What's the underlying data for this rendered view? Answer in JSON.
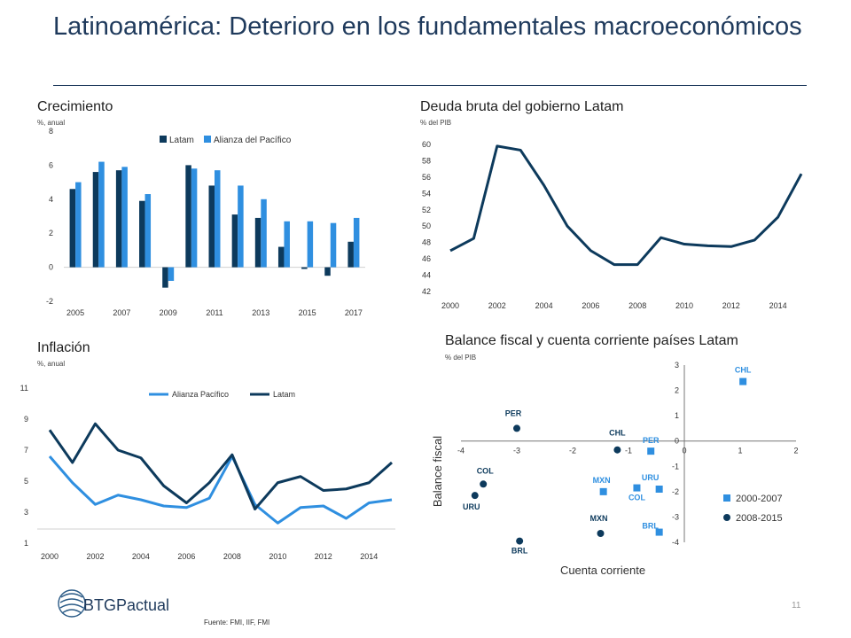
{
  "slide": {
    "title": "Latinoamérica: Deterioro en los fundamentales macroeconómicos",
    "source": "Fuente: FMI, IIF, FMI",
    "page_number": "11",
    "logo_text": "BTGPactual"
  },
  "colors": {
    "dark": "#0d3a5c",
    "light": "#2f8fe0",
    "title": "#1f3a5c"
  },
  "chart_data": [
    {
      "id": "crecimiento",
      "type": "bar",
      "title": "Crecimiento",
      "subtitle": "%, anual",
      "x": [
        2005,
        2006,
        2007,
        2008,
        2009,
        2010,
        2011,
        2012,
        2013,
        2014,
        2015,
        2016,
        2017
      ],
      "x_tick_labels": [
        "2005",
        "2007",
        "2009",
        "2011",
        "2013",
        "2015",
        "2017"
      ],
      "ylim": [
        -2,
        8
      ],
      "y_ticks": [
        "-2",
        "0",
        "2",
        "4",
        "6",
        "8"
      ],
      "legend_position": "top",
      "series": [
        {
          "name": "Latam",
          "values": [
            4.6,
            5.6,
            5.7,
            3.9,
            -1.2,
            6.0,
            4.8,
            3.1,
            2.9,
            1.2,
            -0.1,
            -0.5,
            1.5
          ]
        },
        {
          "name": "Alianza del Pacífico",
          "values": [
            5.0,
            6.2,
            5.9,
            4.3,
            -0.8,
            5.8,
            5.7,
            4.8,
            4.0,
            2.7,
            2.7,
            2.6,
            2.9
          ]
        }
      ]
    },
    {
      "id": "deuda",
      "type": "line",
      "title": "Deuda bruta del gobierno Latam",
      "subtitle": "% del PIB",
      "x": [
        2000,
        2001,
        2002,
        2003,
        2004,
        2005,
        2006,
        2007,
        2008,
        2009,
        2010,
        2011,
        2012,
        2013,
        2014,
        2015
      ],
      "x_tick_labels": [
        "2000",
        "2002",
        "2004",
        "2006",
        "2008",
        "2010",
        "2012",
        "2014"
      ],
      "ylim": [
        42,
        60
      ],
      "y_ticks": [
        "42",
        "44",
        "46",
        "48",
        "50",
        "52",
        "54",
        "56",
        "58",
        "60"
      ],
      "series": [
        {
          "name": "",
          "values": [
            47.0,
            48.5,
            59.8,
            59.3,
            55.0,
            50.0,
            47.0,
            45.3,
            45.3,
            48.6,
            47.8,
            47.6,
            47.5,
            48.3,
            51.1,
            56.4
          ]
        }
      ]
    },
    {
      "id": "inflacion",
      "type": "line",
      "title": "Inflación",
      "subtitle": "%, anual",
      "x": [
        2000,
        2001,
        2002,
        2003,
        2004,
        2005,
        2006,
        2007,
        2008,
        2009,
        2010,
        2011,
        2012,
        2013,
        2014,
        2015
      ],
      "x_tick_labels": [
        "2000",
        "2002",
        "2004",
        "2006",
        "2008",
        "2010",
        "2012",
        "2014"
      ],
      "ylim": [
        1,
        11
      ],
      "y_ticks": [
        "1",
        "3",
        "5",
        "7",
        "9",
        "11"
      ],
      "legend_position": "top",
      "series": [
        {
          "name": "Alianza Pacífico",
          "values": [
            6.6,
            4.9,
            3.5,
            4.1,
            3.8,
            3.4,
            3.3,
            3.9,
            6.6,
            3.5,
            2.3,
            3.3,
            3.4,
            2.6,
            3.6,
            3.8
          ]
        },
        {
          "name": "Latam",
          "values": [
            8.3,
            6.2,
            8.7,
            7.0,
            6.5,
            4.7,
            3.6,
            4.9,
            6.7,
            3.2,
            4.9,
            5.3,
            4.4,
            4.5,
            4.9,
            6.2
          ]
        }
      ]
    },
    {
      "id": "balance",
      "type": "scatter",
      "title": "Balance fiscal y cuenta corriente países Latam",
      "subtitle": "% del PIB",
      "xlabel": "Cuenta corriente",
      "ylabel": "Balance fiscal",
      "xlim": [
        -4,
        2
      ],
      "ylim": [
        -4,
        3
      ],
      "x_ticks": [
        "-4",
        "-3",
        "-2",
        "-1",
        "0",
        "1",
        "2"
      ],
      "y_ticks": [
        "-4",
        "-3",
        "-2",
        "-1",
        "0",
        "1",
        "2",
        "3"
      ],
      "legend_position": "bottom-right",
      "series": [
        {
          "name": "2000-2007",
          "marker": "square",
          "points": [
            {
              "label": "CHL",
              "x": 1.05,
              "y": 2.35
            },
            {
              "label": "PER",
              "x": -0.6,
              "y": -0.4
            },
            {
              "label": "MXN",
              "x": -1.45,
              "y": -2.0
            },
            {
              "label": "COL",
              "x": -0.85,
              "y": -1.85
            },
            {
              "label": "URU",
              "x": -0.45,
              "y": -1.9
            },
            {
              "label": "BRL",
              "x": -0.45,
              "y": -3.6
            }
          ]
        },
        {
          "name": "2008-2015",
          "marker": "circle",
          "points": [
            {
              "label": "PER",
              "x": -3.0,
              "y": 0.5
            },
            {
              "label": "CHL",
              "x": -1.2,
              "y": -0.35
            },
            {
              "label": "COL",
              "x": -3.6,
              "y": -1.7
            },
            {
              "label": "URU",
              "x": -3.75,
              "y": -2.15
            },
            {
              "label": "MXN",
              "x": -1.5,
              "y": -3.65
            },
            {
              "label": "BRL",
              "x": -2.95,
              "y": -3.95
            }
          ]
        }
      ]
    }
  ]
}
